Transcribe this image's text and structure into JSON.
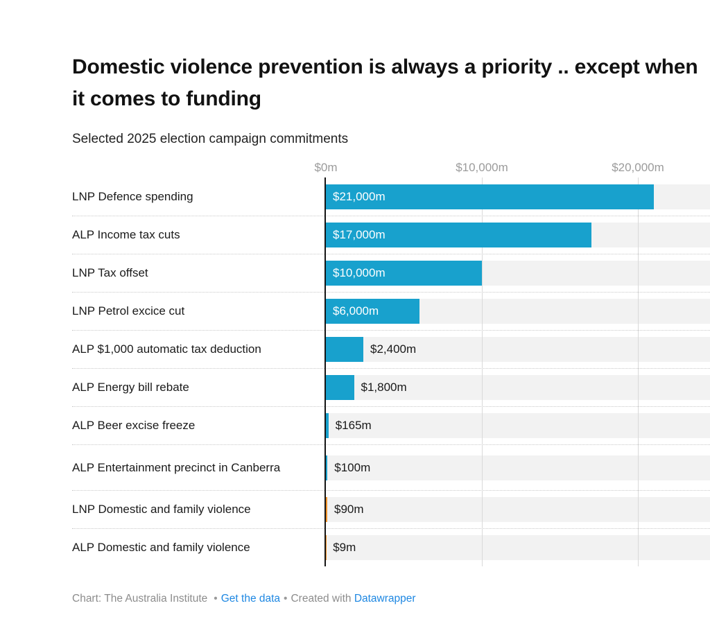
{
  "header": {
    "title": "Domestic violence prevention is always a priority .. except when it comes to funding",
    "subtitle": "Selected 2025 election campaign commitments"
  },
  "colors": {
    "blue": "#18A1CD",
    "orange": "#F09329",
    "track": "#F2F2F2",
    "gridline": "#D9D9D9",
    "axis": "#141414",
    "link": "#1D87E2"
  },
  "chart_data": {
    "type": "bar",
    "orientation": "horizontal",
    "title": "Domestic violence prevention is always a priority .. except when it comes to funding",
    "subtitle": "Selected 2025 election campaign commitments",
    "unit": "$m",
    "xlim": [
      0,
      24600
    ],
    "grid": "vertical-gridlines-on",
    "legend": "none",
    "x_ticks": [
      {
        "value": 0,
        "label": "$0m"
      },
      {
        "value": 10000,
        "label": "$10,000m"
      },
      {
        "value": 20000,
        "label": "$20,000m"
      }
    ],
    "categories": [
      "LNP Defence spending",
      "ALP Income tax cuts",
      "LNP Tax offset",
      "LNP Petrol excice cut",
      "ALP $1,000 automatic tax deduction",
      "ALP Energy bill rebate",
      "ALP Beer excise freeze",
      "ALP Entertainment precinct in Canberra",
      "LNP Domestic and family violence",
      "ALP Domestic and family violence"
    ],
    "values": [
      21000,
      17000,
      10000,
      6000,
      2400,
      1800,
      165,
      100,
      90,
      9
    ],
    "value_labels": [
      "$21,000m",
      "$17,000m",
      "$10,000m",
      "$6,000m",
      "$2,400m",
      "$1,800m",
      "$165m",
      "$100m",
      "$90m",
      "$9m"
    ],
    "label_inside": [
      true,
      true,
      true,
      true,
      false,
      false,
      false,
      false,
      false,
      false
    ],
    "bar_colors": [
      "blue",
      "blue",
      "blue",
      "blue",
      "blue",
      "blue",
      "blue",
      "blue",
      "orange",
      "orange"
    ]
  },
  "footer": {
    "credit": "Chart: The Australia Institute",
    "sep1": "•",
    "get_data_label": "Get the data",
    "sep2": "•",
    "created_with": "Created with",
    "datawrapper_label": "Datawrapper"
  }
}
